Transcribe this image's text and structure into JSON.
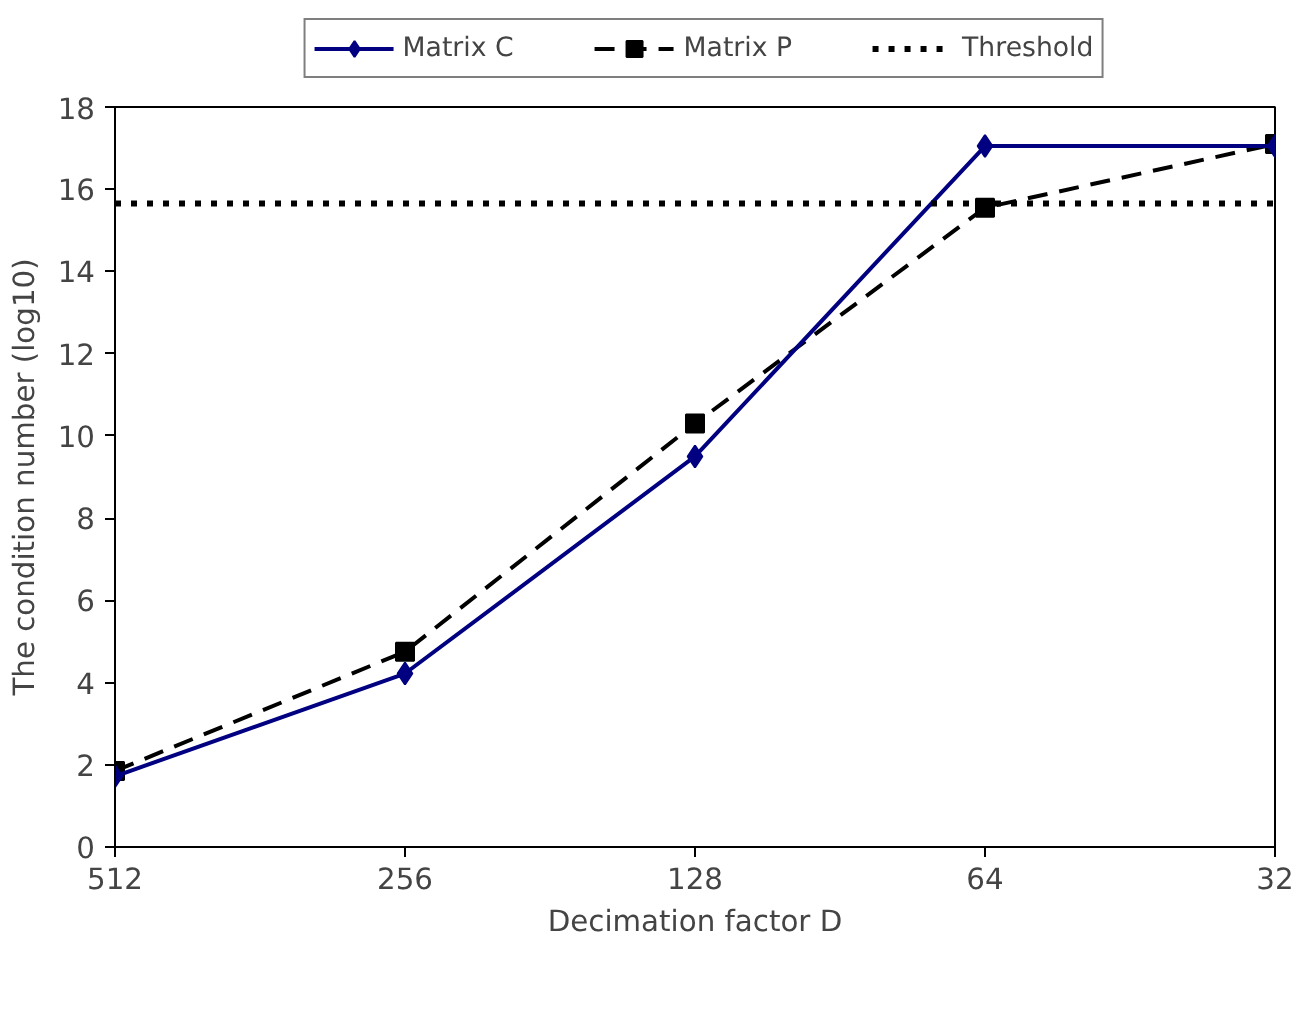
{
  "chart_data": {
    "type": "line",
    "xlabel": "Decimation factor D",
    "ylabel": "The condition number (log10)",
    "categories": [
      "512",
      "256",
      "128",
      "64",
      "32"
    ],
    "ylim": [
      0,
      18
    ],
    "yticks": [
      0,
      2,
      4,
      6,
      8,
      10,
      12,
      14,
      16,
      18
    ],
    "grid": false,
    "legend": "top",
    "series": [
      {
        "name": "Matrix C",
        "color": "#000080",
        "marker": "diamond",
        "line_style": "solid",
        "values": [
          1.72,
          4.22,
          9.5,
          17.05,
          17.05
        ]
      },
      {
        "name": "Matrix P",
        "color": "#000000",
        "marker": "square",
        "line_style": "dashed",
        "values": [
          1.85,
          4.75,
          10.3,
          15.55,
          17.1
        ]
      }
    ],
    "ref_lines": [
      {
        "axis": "y",
        "value": 15.65,
        "label": "Threshold",
        "color": "#000000",
        "line_style": "dotted"
      }
    ]
  }
}
